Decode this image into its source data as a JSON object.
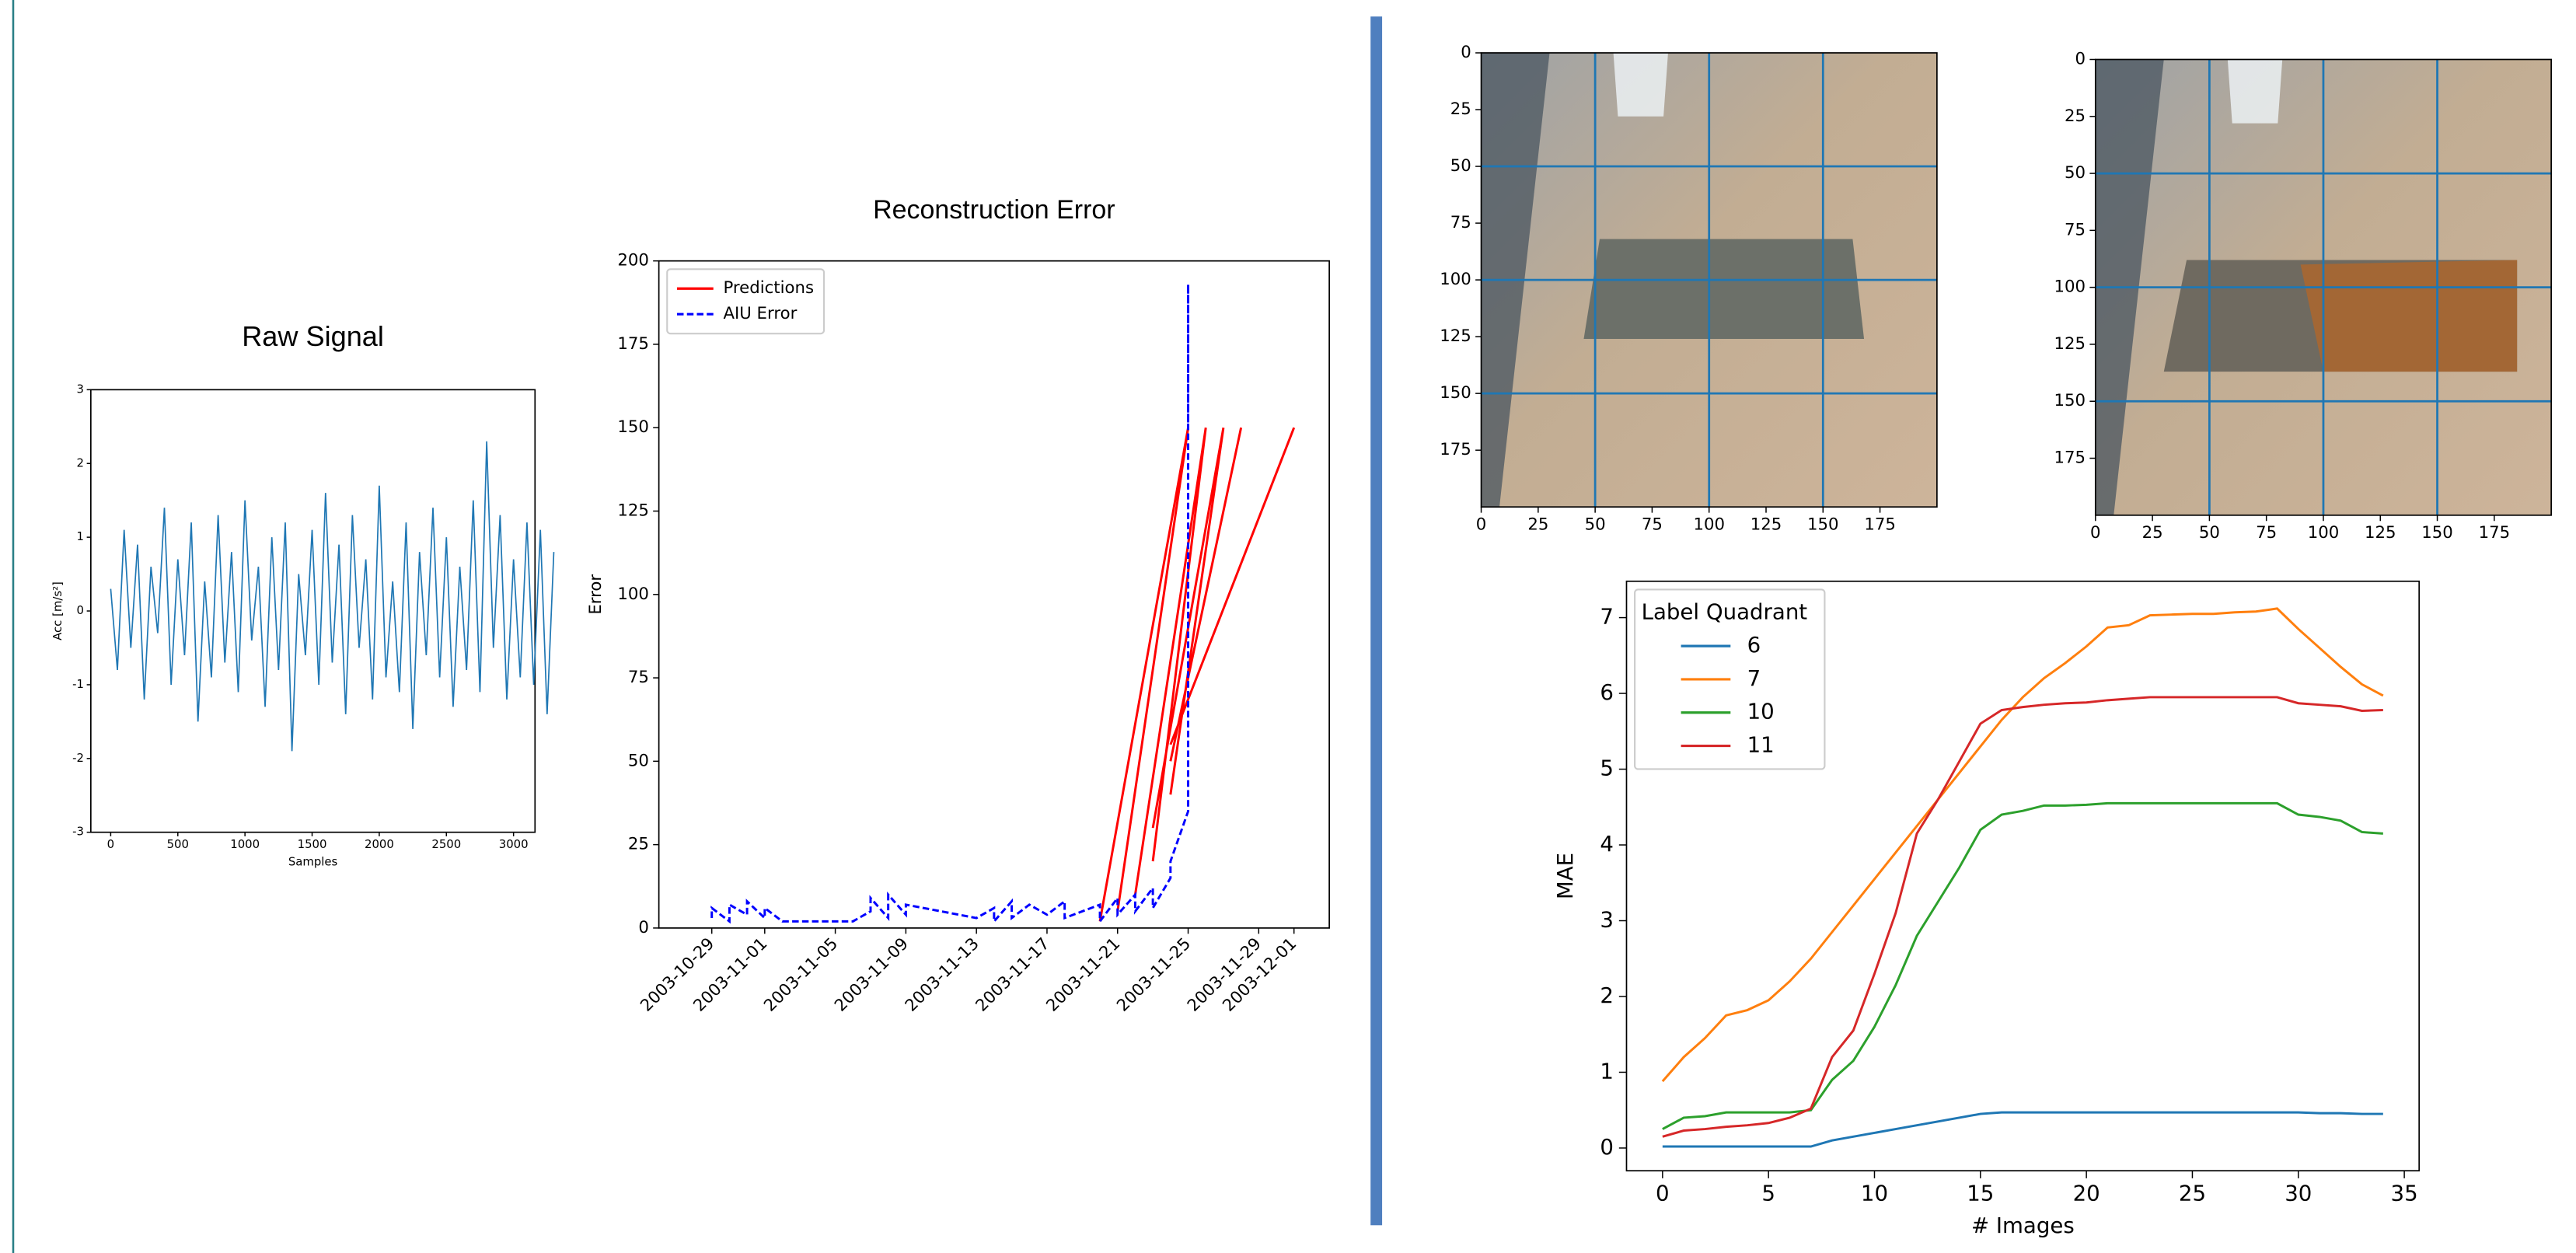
{
  "chart_data": [
    {
      "type": "line",
      "title": "Raw Signal",
      "x_label": "Samples",
      "y_label": "Acc [m/s²]",
      "color": "#1f77b4",
      "x": [
        0,
        50,
        100,
        150,
        200,
        250,
        300,
        350,
        400,
        450,
        500,
        550,
        600,
        650,
        700,
        750,
        800,
        850,
        900,
        950,
        1000,
        1050,
        1100,
        1150,
        1200,
        1250,
        1300,
        1350,
        1400,
        1450,
        1500,
        1550,
        1600,
        1650,
        1700,
        1750,
        1800,
        1850,
        1900,
        1950,
        2000,
        2050,
        2100,
        2150,
        2200,
        2250,
        2300,
        2350,
        2400,
        2450,
        2500,
        2550,
        2600,
        2650,
        2700,
        2750,
        2800,
        2850,
        2900,
        2950,
        3000,
        3050,
        3100,
        3150,
        3200,
        3250,
        3300
      ],
      "values": [
        0.3,
        -0.8,
        1.1,
        -0.5,
        0.9,
        -1.2,
        0.6,
        -0.3,
        1.4,
        -1.0,
        0.7,
        -0.6,
        1.2,
        -1.5,
        0.4,
        -0.9,
        1.3,
        -0.7,
        0.8,
        -1.1,
        1.5,
        -0.4,
        0.6,
        -1.3,
        1.0,
        -0.8,
        1.2,
        -1.9,
        0.5,
        -0.6,
        1.1,
        -1.0,
        1.6,
        -0.7,
        0.9,
        -1.4,
        1.3,
        -0.5,
        0.7,
        -1.2,
        1.7,
        -0.9,
        0.4,
        -1.1,
        1.2,
        -1.6,
        0.8,
        -0.6,
        1.4,
        -0.9,
        1.0,
        -1.3,
        0.6,
        -0.8,
        1.5,
        -1.1,
        2.3,
        -0.5,
        1.3,
        -1.2,
        0.7,
        -0.9,
        1.2,
        -1.0,
        1.1,
        -1.4,
        0.8
      ],
      "xlim": [
        -148,
        3160
      ],
      "ylim": [
        -3,
        3
      ],
      "xticks": [
        0,
        500,
        1000,
        1500,
        2000,
        2500,
        3000
      ],
      "yticks": [
        -3,
        -2,
        -1,
        0,
        1,
        2,
        3
      ]
    },
    {
      "type": "line",
      "title": "Reconstruction Error",
      "y_label": "Error",
      "legend": "upper left",
      "xlim": [
        "2003-10-26",
        "2003-12-03"
      ],
      "ylim": [
        0,
        200
      ],
      "xticks": [
        "2003-10-29",
        "2003-11-01",
        "2003-11-05",
        "2003-11-09",
        "2003-11-13",
        "2003-11-17",
        "2003-11-21",
        "2003-11-25",
        "2003-11-29",
        "2003-12-01"
      ],
      "yticks": [
        0,
        25,
        50,
        75,
        100,
        125,
        150,
        175,
        200
      ],
      "series": [
        {
          "name": "Predictions",
          "color": "#ff0000",
          "dash": false,
          "x": [
            "2003-11-20",
            "2003-11-25",
            null,
            "2003-11-21",
            "2003-11-25",
            null,
            "2003-11-22",
            "2003-11-26",
            null,
            "2003-11-23",
            "2003-11-26",
            null,
            "2003-11-23",
            "2003-11-27",
            null,
            "2003-11-24",
            "2003-11-27",
            null,
            "2003-11-24",
            "2003-11-28",
            null,
            "2003-11-24",
            "2003-12-01"
          ],
          "values": [
            2,
            150,
            null,
            5,
            150,
            null,
            10,
            150,
            null,
            20,
            150,
            null,
            30,
            150,
            null,
            40,
            150,
            null,
            50,
            150,
            null,
            55,
            150
          ]
        },
        {
          "name": "AIU Error",
          "color": "#0000ff",
          "dash": true,
          "x": [
            "2003-10-29",
            "2003-10-29",
            "2003-10-30",
            "2003-10-30",
            "2003-10-31",
            "2003-10-31",
            "2003-11-01",
            "2003-11-01",
            "2003-11-02",
            "2003-11-06",
            "2003-11-07",
            "2003-11-07",
            "2003-11-08",
            "2003-11-08",
            "2003-11-09",
            "2003-11-09",
            "2003-11-13",
            "2003-11-14",
            "2003-11-14",
            "2003-11-15",
            "2003-11-15",
            "2003-11-16",
            "2003-11-17",
            "2003-11-18",
            "2003-11-18",
            "2003-11-19",
            "2003-11-20",
            "2003-11-20",
            "2003-11-21",
            "2003-11-21",
            "2003-11-22",
            "2003-11-22",
            "2003-11-23",
            "2003-11-23",
            "2003-11-24",
            "2003-11-24",
            "2003-11-25",
            "2003-11-25",
            "2003-11-25",
            "2003-11-25"
          ],
          "values": [
            3,
            6,
            2,
            7,
            4,
            8,
            3,
            6,
            2,
            2,
            5,
            9,
            3,
            10,
            4,
            7,
            3,
            6,
            2,
            8,
            3,
            7,
            4,
            8,
            3,
            5,
            7,
            2,
            9,
            4,
            10,
            5,
            12,
            6,
            15,
            20,
            35,
            95,
            193,
            150
          ]
        }
      ]
    },
    {
      "type": "image",
      "xlim": [
        0,
        200
      ],
      "ylim": [
        200,
        0
      ],
      "xticks": [
        0,
        25,
        50,
        75,
        100,
        125,
        150,
        175
      ],
      "yticks": [
        0,
        25,
        50,
        75,
        100,
        125,
        150,
        175
      ],
      "grid_lines": [
        50,
        100,
        150
      ],
      "grid_color": "#1f77b4",
      "rust": false
    },
    {
      "type": "image",
      "xlim": [
        0,
        200
      ],
      "ylim": [
        200,
        0
      ],
      "xticks": [
        0,
        25,
        50,
        75,
        100,
        125,
        150,
        175
      ],
      "yticks": [
        0,
        25,
        50,
        75,
        100,
        125,
        150,
        175
      ],
      "grid_lines": [
        50,
        100,
        150
      ],
      "grid_color": "#1f77b4",
      "rust": true
    },
    {
      "type": "line",
      "x_label": "# Images",
      "y_label": "MAE",
      "legend": "upper left",
      "legend_title": "Label Quadrant",
      "xlim": [
        -1.7,
        35.7
      ],
      "ylim": [
        -0.3,
        7.48
      ],
      "xticks": [
        0,
        5,
        10,
        15,
        20,
        25,
        30,
        35
      ],
      "yticks": [
        0,
        1,
        2,
        3,
        4,
        5,
        6,
        7
      ],
      "x": [
        0,
        1,
        2,
        3,
        4,
        5,
        6,
        7,
        8,
        9,
        10,
        11,
        12,
        13,
        14,
        15,
        16,
        17,
        18,
        19,
        20,
        21,
        22,
        23,
        24,
        25,
        26,
        27,
        28,
        29,
        30,
        31,
        32,
        33,
        34
      ],
      "series": [
        {
          "name": "6",
          "color": "#1f77b4",
          "values": [
            0.02,
            0.02,
            0.02,
            0.02,
            0.02,
            0.02,
            0.02,
            0.02,
            0.1,
            0.15,
            0.2,
            0.25,
            0.3,
            0.35,
            0.4,
            0.45,
            0.47,
            0.47,
            0.47,
            0.47,
            0.47,
            0.47,
            0.47,
            0.47,
            0.47,
            0.47,
            0.47,
            0.47,
            0.47,
            0.47,
            0.47,
            0.46,
            0.46,
            0.45,
            0.45
          ]
        },
        {
          "name": "7",
          "color": "#ff7f0e",
          "values": [
            0.88,
            1.2,
            1.45,
            1.75,
            1.82,
            1.95,
            2.2,
            2.5,
            2.85,
            3.2,
            3.55,
            3.9,
            4.25,
            4.6,
            4.95,
            5.3,
            5.65,
            5.95,
            6.2,
            6.4,
            6.62,
            6.87,
            6.9,
            7.03,
            7.04,
            7.05,
            7.05,
            7.07,
            7.08,
            7.12,
            6.85,
            6.6,
            6.35,
            6.12,
            5.97
          ]
        },
        {
          "name": "10",
          "color": "#2ca02c",
          "values": [
            0.25,
            0.4,
            0.42,
            0.47,
            0.47,
            0.47,
            0.47,
            0.5,
            0.9,
            1.15,
            1.6,
            2.15,
            2.8,
            3.25,
            3.7,
            4.2,
            4.4,
            4.45,
            4.52,
            4.52,
            4.53,
            4.55,
            4.55,
            4.55,
            4.55,
            4.55,
            4.55,
            4.55,
            4.55,
            4.55,
            4.4,
            4.37,
            4.32,
            4.17,
            4.15
          ]
        },
        {
          "name": "11",
          "color": "#d62728",
          "values": [
            0.15,
            0.23,
            0.25,
            0.28,
            0.3,
            0.33,
            0.4,
            0.52,
            1.2,
            1.55,
            2.3,
            3.1,
            4.15,
            4.6,
            5.1,
            5.6,
            5.78,
            5.82,
            5.85,
            5.87,
            5.88,
            5.91,
            5.93,
            5.95,
            5.95,
            5.95,
            5.95,
            5.95,
            5.95,
            5.95,
            5.87,
            5.85,
            5.83,
            5.77,
            5.78
          ]
        }
      ]
    }
  ]
}
